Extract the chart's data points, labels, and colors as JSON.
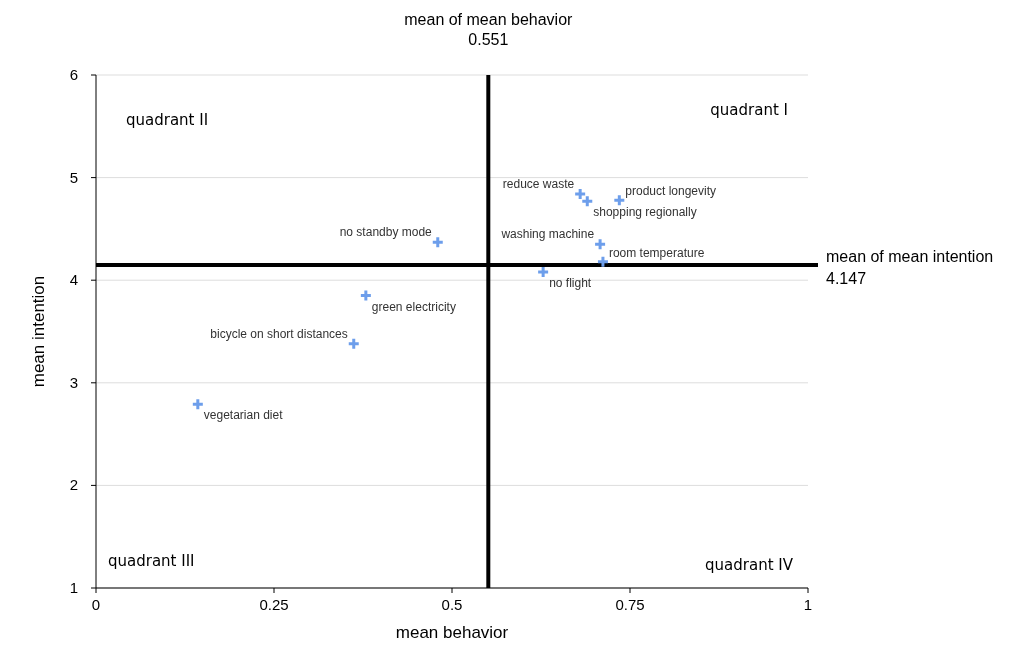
{
  "chart_data": {
    "type": "scatter",
    "xlabel": "mean behavior",
    "ylabel": "mean intention",
    "x": [
      0.143,
      0.362,
      0.379,
      0.48,
      0.628,
      0.68,
      0.69,
      0.735,
      0.708,
      0.712
    ],
    "series": [
      {
        "color": "#6d9eeb",
        "values": [
          2.79,
          3.38,
          3.85,
          4.37,
          4.08,
          4.84,
          4.77,
          4.78,
          4.35,
          4.18
        ]
      }
    ],
    "xlim": [
      0,
      1
    ],
    "xticks": [
      0,
      0.25,
      0.5,
      0.75,
      1
    ],
    "ylim": [
      1,
      6
    ],
    "yticks": [
      1,
      2,
      3,
      4,
      5,
      6
    ],
    "grid": "y",
    "marker": "cross",
    "ref_lines": [
      {
        "axis": "x",
        "value": 0.551,
        "label": "mean of mean behavior\n0.551",
        "color": "#000000"
      },
      {
        "axis": "y",
        "value": 4.147,
        "label": "mean of mean intention\n4.147",
        "color": "#000000"
      }
    ],
    "annotations": [
      "quadrant I",
      "quadrant II",
      "quadrant III",
      "quadrant IV",
      {
        "text": "vegetarian diet",
        "x": 0.143,
        "y": 2.79
      },
      {
        "text": "bicycle on short distances",
        "x": 0.362,
        "y": 3.38
      },
      {
        "text": "green electricity",
        "x": 0.379,
        "y": 3.85
      },
      {
        "text": "no standby mode",
        "x": 0.48,
        "y": 4.37
      },
      {
        "text": "no flight",
        "x": 0.628,
        "y": 4.08
      },
      {
        "text": "reduce waste",
        "x": 0.68,
        "y": 4.84
      },
      {
        "text": "shopping regionally",
        "x": 0.69,
        "y": 4.77
      },
      {
        "text": "product longevity",
        "x": 0.735,
        "y": 4.78
      },
      {
        "text": "washing machine",
        "x": 0.708,
        "y": 4.35
      },
      {
        "text": "room temperature",
        "x": 0.712,
        "y": 4.18
      }
    ]
  }
}
